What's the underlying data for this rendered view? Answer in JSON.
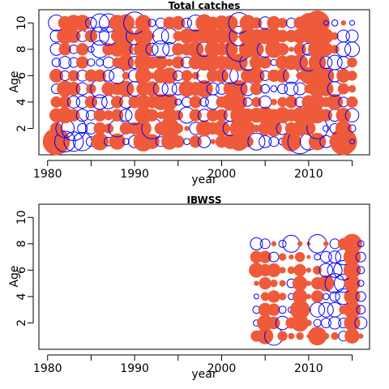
{
  "chart_data": [
    {
      "type": "bubble",
      "title": "Total catches",
      "xlabel": "year",
      "ylabel": "Age",
      "xlim": [
        1979,
        2017
      ],
      "ylim": [
        0,
        11
      ],
      "xticks": [
        1980,
        1990,
        2000,
        2010
      ],
      "xtick_labels": [
        "1980",
        "1990",
        "2000",
        "2010"
      ],
      "yticks": [
        2,
        4,
        6,
        8,
        10
      ],
      "ytick_labels": [
        "2",
        "4",
        "6",
        "8",
        "10"
      ],
      "extra_xtick_marks": [
        1985,
        1995,
        2005,
        2015
      ],
      "years": [
        1981,
        1982,
        1983,
        1984,
        1985,
        1986,
        1987,
        1988,
        1989,
        1990,
        1991,
        1992,
        1993,
        1994,
        1995,
        1996,
        1997,
        1998,
        1999,
        2000,
        2001,
        2002,
        2003,
        2004,
        2005,
        2006,
        2007,
        2008,
        2009,
        2010,
        2011,
        2012,
        2013,
        2014,
        2015
      ],
      "ages": [
        1,
        2,
        3,
        4,
        5,
        6,
        7,
        8,
        9,
        10
      ],
      "residuals": {
        "1": [
          2.2,
          -1.7,
          -1.6,
          -1.5,
          -0.8,
          1.4,
          -0.7,
          1.3,
          -0.5,
          -1.0,
          1.6,
          1.2,
          -0.8,
          1.3,
          1.0,
          -0.5,
          1.0,
          -1.0,
          0.4,
          1.0,
          1.2,
          1.5,
          0.9,
          -1.4,
          -1.0,
          -0.8,
          -0.6,
          1.6,
          -2.0,
          -1.4,
          1.4,
          -1.0,
          -0.8,
          2.2,
          -0.4
        ],
        "2": [
          1.0,
          -1.5,
          -2.0,
          -0.8,
          -0.9,
          1.0,
          0.8,
          -1.4,
          1.0,
          1.0,
          1.3,
          -1.7,
          1.0,
          1.7,
          0.8,
          0.4,
          -1.0,
          1.3,
          1.0,
          1.3,
          -1.2,
          1.5,
          1.2,
          0.6,
          1.1,
          1.3,
          -1.0,
          1.0,
          1.2,
          1.1,
          -1.7,
          -0.5,
          -0.8,
          1.3,
          -0.6
        ],
        "3": [
          1.1,
          1.3,
          1.0,
          -1.0,
          -0.8,
          1.0,
          0.8,
          1.0,
          -1.0,
          -1.5,
          1.4,
          1.0,
          0.6,
          1.2,
          0.8,
          -1.3,
          1.0,
          -1.0,
          1.0,
          1.0,
          -1.0,
          1.4,
          1.1,
          1.2,
          1.4,
          1.0,
          1.3,
          1.0,
          1.3,
          1.6,
          1.3,
          1.0,
          -1.0,
          1.2,
          -1.1
        ],
        "4": [
          0.9,
          1.0,
          -1.0,
          -1.0,
          1.0,
          -1.2,
          -1.1,
          1.0,
          -1.0,
          1.0,
          1.2,
          1.0,
          1.3,
          1.3,
          -0.5,
          -0.8,
          1.0,
          -0.7,
          -1.2,
          0.9,
          1.4,
          1.3,
          -0.7,
          0.8,
          -1.0,
          0.5,
          0.8,
          1.0,
          -0.8,
          1.1,
          1.2,
          0.8,
          1.3,
          -0.8,
          0.9
        ],
        "5": [
          -0.8,
          1.3,
          1.1,
          -1.0,
          0.8,
          -1.5,
          1.1,
          1.0,
          1.3,
          -1.2,
          1.1,
          1.2,
          -1.2,
          -1.2,
          -1.0,
          1.3,
          1.1,
          1.4,
          -1.0,
          -0.9,
          1.1,
          1.4,
          -1.1,
          1.0,
          -0.7,
          -0.5,
          -0.8,
          -1.1,
          -1.0,
          0.7,
          1.4,
          1.2,
          -1.2,
          0.9,
          0.6
        ],
        "6": [
          1.1,
          -0.8,
          0.9,
          -0.9,
          1.0,
          1.0,
          -0.9,
          -1.3,
          0.6,
          -1.0,
          1.3,
          0.5,
          1.2,
          1.3,
          -0.8,
          0.9,
          0.6,
          -1.2,
          1.0,
          1.1,
          -1.3,
          -1.5,
          1.1,
          1.3,
          -0.8,
          1.0,
          1.1,
          -1.3,
          0.6,
          1.4,
          1.5,
          1.3,
          -1.0,
          1.1,
          0.8
        ],
        "7": [
          -0.7,
          -1.0,
          -0.8,
          1.0,
          -0.6,
          -0.6,
          -0.9,
          0.8,
          1.3,
          -1.0,
          1.4,
          1.0,
          1.1,
          0.6,
          1.0,
          -0.9,
          1.1,
          1.3,
          1.3,
          1.1,
          1.2,
          1.4,
          -1.3,
          1.1,
          1.0,
          -0.5,
          1.1,
          1.2,
          1.3,
          -1.4,
          1.4,
          -1.0,
          -1.2,
          -1.0,
          0.8
        ],
        "8": [
          -1.0,
          1.0,
          -0.7,
          1.0,
          -0.5,
          -1.4,
          1.0,
          1.2,
          1.2,
          -0.8,
          1.5,
          -1.0,
          -1.4,
          -1.1,
          1.0,
          1.0,
          1.3,
          -1.2,
          1.3,
          1.0,
          1.2,
          -2.0,
          1.4,
          1.2,
          -1.3,
          1.4,
          1.0,
          0.4,
          1.0,
          -1.0,
          1.5,
          1.1,
          0.7,
          -1.2,
          -1.2
        ],
        "9": [
          -1.0,
          1.3,
          1.1,
          -0.9,
          1.0,
          -1.5,
          -1.5,
          1.0,
          1.4,
          -1.4,
          1.5,
          0.4,
          -1.3,
          -1.3,
          0.8,
          1.2,
          1.1,
          1.1,
          1.3,
          1.2,
          1.2,
          -1.6,
          1.4,
          1.1,
          1.3,
          1.3,
          1.0,
          1.0,
          1.2,
          1.1,
          1.7,
          1.2,
          0.6,
          -1.0,
          -1.0
        ],
        "10": [
          -1.3,
          1.1,
          1.3,
          1.3,
          -0.9,
          -1.5,
          -1.5,
          1.3,
          1.4,
          -1.8,
          1.3,
          -0.6,
          -0.8,
          1.0,
          1.1,
          -0.8,
          -1.3,
          1.4,
          1.0,
          1.2,
          1.2,
          -1.7,
          1.3,
          0.9,
          -1.0,
          1.1,
          0.8,
          -0.8,
          1.0,
          1.6,
          2.0,
          -0.4,
          -0.5,
          0.4,
          -0.4
        ]
      }
    },
    {
      "type": "bubble",
      "title": "IBWSS",
      "xlabel": "year",
      "ylabel": "Age",
      "xlim": [
        1979,
        2017
      ],
      "ylim": [
        0,
        11
      ],
      "xticks": [
        1980,
        1990,
        2000,
        2010
      ],
      "xtick_labels": [
        "1980",
        "1990",
        "2000",
        "2010"
      ],
      "yticks": [
        2,
        4,
        6,
        8,
        10
      ],
      "ytick_labels": [
        "2",
        "4",
        "6",
        "8",
        "10"
      ],
      "extra_xtick_marks": [
        1985,
        1995,
        2005,
        2015
      ],
      "years": [
        2004,
        2005,
        2006,
        2007,
        2008,
        2009,
        2010,
        2011,
        2012,
        2013,
        2014,
        2015,
        2016
      ],
      "ages": [
        1,
        2,
        3,
        4,
        5,
        6,
        7,
        8
      ],
      "residuals": {
        "1": [
          0.9,
          1.3,
          -1.5,
          0.8,
          0.5,
          0.6,
          0.3,
          1.5,
          0.5,
          0.6,
          -0.8,
          1.2,
          0.4
        ],
        "2": [
          -0.5,
          1.3,
          1.0,
          -1.1,
          0.9,
          1.4,
          0.5,
          -0.6,
          -0.8,
          -1.0,
          -0.8,
          1.3,
          -1.0
        ],
        "3": [
          -0.6,
          1.1,
          1.0,
          -0.6,
          -0.5,
          1.6,
          0.4,
          -1.2,
          -1.2,
          -1.2,
          0.7,
          1.4,
          -0.7
        ],
        "4": [
          -0.4,
          0.7,
          1.0,
          0.6,
          -0.5,
          1.2,
          0.4,
          1.0,
          -0.5,
          -0.8,
          -1.3,
          1.3,
          -0.8
        ],
        "5": [
          0.4,
          1.0,
          0.6,
          0.5,
          -0.7,
          1.2,
          0.4,
          1.0,
          1.3,
          -1.6,
          -1.5,
          1.3,
          -0.5
        ],
        "6": [
          1.2,
          1.0,
          1.1,
          0.5,
          0.6,
          1.0,
          0.4,
          0.7,
          -1.1,
          -1.2,
          -1.6,
          1.4,
          -0.6
        ],
        "7": [
          1.0,
          1.0,
          -0.8,
          0.6,
          0.4,
          0.8,
          0.3,
          -0.5,
          -0.9,
          -1.0,
          -1.3,
          1.4,
          -0.8
        ],
        "8": [
          -1.0,
          -0.8,
          0.4,
          -0.6,
          -1.4,
          0.4,
          0.3,
          -1.5,
          0.4,
          -0.8,
          0.9,
          1.6,
          -0.5
        ]
      }
    }
  ],
  "colors": {
    "positive": "#ee5a3a",
    "negative": "#0000ff"
  }
}
